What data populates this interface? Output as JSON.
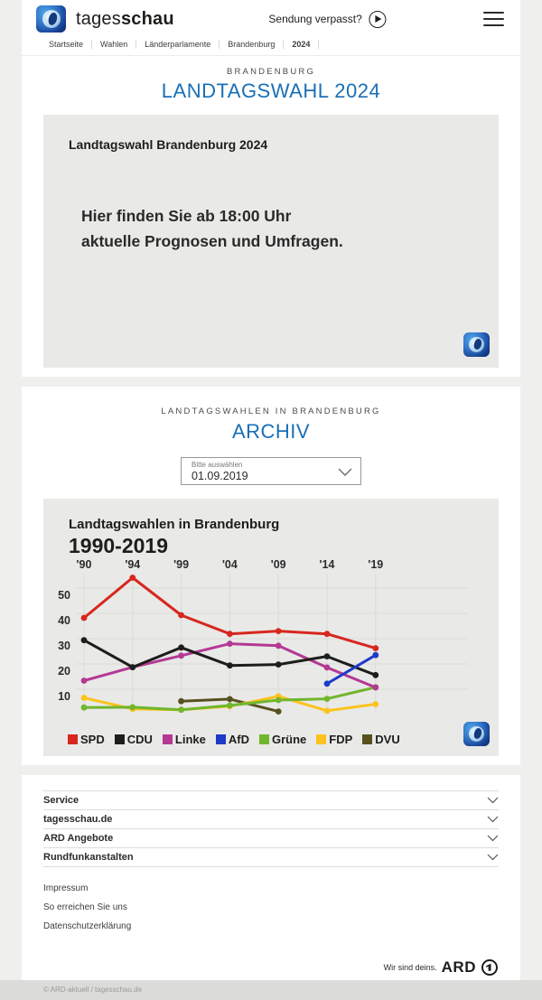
{
  "header": {
    "brand_regular": "tages",
    "brand_bold": "schau",
    "missed_label": "Sendung verpasst?"
  },
  "breadcrumb": [
    "Startseite",
    "Wahlen",
    "Länderparlamente",
    "Brandenburg",
    "2024"
  ],
  "hero": {
    "kicker": "BRANDENBURG",
    "title": "LANDTAGSWAHL 2024"
  },
  "promo": {
    "heading": "Landtagswahl Brandenburg 2024",
    "line1": "Hier finden Sie ab 18:00 Uhr",
    "line2": "aktuelle Prognosen und Umfragen."
  },
  "archive": {
    "kicker": "LANDTAGSWAHLEN IN BRANDENBURG",
    "title": "ARCHIV",
    "select_label": "Bitte auswählen",
    "select_value": "01.09.2019"
  },
  "chart_data": {
    "type": "line",
    "title": "Landtagswahlen in Brandenburg",
    "subtitle": "1990-2019",
    "x_labels": [
      "'90",
      "'94",
      "'99",
      "'04",
      "'09",
      "'14",
      "'19"
    ],
    "y_ticks": [
      10,
      20,
      30,
      40,
      50
    ],
    "ylim": [
      0,
      57
    ],
    "grid": true,
    "legend_position": "bottom",
    "series": [
      {
        "name": "SPD",
        "color": "#d7271e",
        "values": [
          38.2,
          54.1,
          39.3,
          31.9,
          33.0,
          31.9,
          26.2
        ]
      },
      {
        "name": "CDU",
        "color": "#1d1d1b",
        "values": [
          29.4,
          18.7,
          26.5,
          19.4,
          19.8,
          23.0,
          15.6
        ]
      },
      {
        "name": "Linke",
        "color": "#b43894",
        "values": [
          13.4,
          18.7,
          23.3,
          28.0,
          27.2,
          18.6,
          10.7
        ]
      },
      {
        "name": "AfD",
        "color": "#1d3bc8",
        "values": [
          null,
          null,
          null,
          null,
          null,
          12.2,
          23.5
        ]
      },
      {
        "name": "Grüne",
        "color": "#71b62e",
        "values": [
          2.8,
          2.9,
          1.9,
          3.6,
          5.7,
          6.2,
          10.8
        ]
      },
      {
        "name": "FDP",
        "color": "#fbc31c",
        "values": [
          6.6,
          2.2,
          1.9,
          3.3,
          7.2,
          1.5,
          4.1
        ]
      },
      {
        "name": "DVU",
        "color": "#57511f",
        "values": [
          null,
          null,
          5.3,
          6.1,
          1.2,
          null,
          null
        ]
      }
    ]
  },
  "footer": {
    "accordion": [
      "Service",
      "tagesschau.de",
      "ARD Angebote",
      "Rundfunkanstalten"
    ],
    "links": [
      "Impressum",
      "So erreichen Sie uns",
      "Datenschutzerklärung"
    ],
    "ard_claim": "Wir sind deins.",
    "ard_brand": "ARD",
    "copyright": "© ARD-aktuell / tagesschau.de"
  },
  "colors": {
    "accent_blue": "#1a6fb5",
    "panel_gray": "#e9e9e7",
    "page_bg": "#efefee"
  }
}
